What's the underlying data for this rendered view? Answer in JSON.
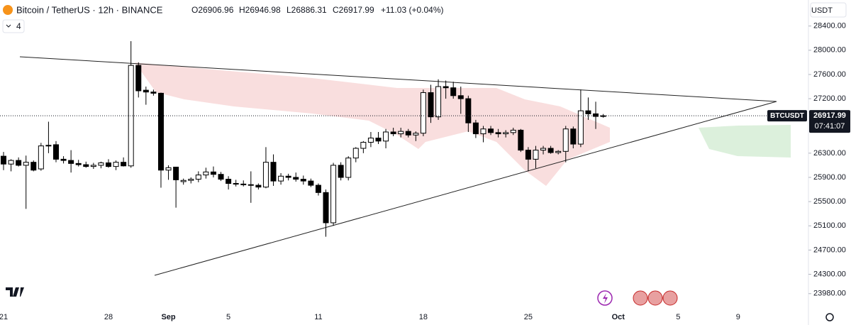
{
  "chart_data": {
    "type": "candlestick",
    "title": "Bitcoin / TetherUS · 12h · BINANCE",
    "legend_values": [
      "O26906.96",
      "H26946.98",
      "L26886.31",
      "C26917.99"
    ],
    "change": "+11.03 (+0.04%)",
    "indicators": 4,
    "currency": "USDT",
    "symbol_label": "BTCUSDT",
    "countdown": "07:41:07",
    "up_color": "#ffffff",
    "down_color": "#000000",
    "categories": [
      "21",
      null,
      null,
      null,
      null,
      null,
      null,
      null,
      null,
      null,
      null,
      null,
      null,
      null,
      "28",
      null,
      null,
      null,
      null,
      null,
      null,
      null,
      "Sep",
      null,
      null,
      null,
      null,
      null,
      null,
      null,
      "5",
      null,
      null,
      null,
      null,
      null,
      null,
      null,
      null,
      null,
      null,
      null,
      "11",
      null,
      null,
      null,
      null,
      null,
      null,
      null,
      null,
      null,
      null,
      null,
      null,
      null,
      "18",
      null,
      null,
      null,
      null,
      null,
      null,
      null,
      null,
      null,
      null,
      null,
      null,
      null,
      "25",
      null,
      null,
      null,
      null,
      null,
      null,
      null,
      null,
      null,
      null,
      null,
      "Oct",
      null,
      null,
      null,
      null,
      null,
      null,
      null,
      "5",
      null,
      null,
      null,
      null,
      null,
      null,
      null,
      "9",
      null,
      null,
      null,
      null,
      null,
      null,
      null,
      null,
      null
    ],
    "open": [
      26250,
      26120,
      26180,
      26100,
      26150,
      26040,
      26420,
      26440,
      26200,
      26180,
      26130,
      26110,
      26080,
      26100,
      26140,
      26080,
      26150,
      26090,
      27750,
      27340,
      27310,
      27290,
      26020,
      26070,
      25830,
      25850,
      25870,
      25940,
      25990,
      25950,
      25870,
      25800,
      25790,
      25780,
      25770,
      25740,
      26150,
      25840,
      25920,
      25900,
      25870,
      25840,
      25770,
      25650,
      25150,
      26100,
      25900,
      26220,
      26380,
      26480,
      26550,
      26500,
      26650,
      26620,
      26660,
      26600,
      26630,
      27300,
      26900,
      27400,
      27380,
      27250,
      27200,
      26800,
      26620,
      26700,
      26640,
      26620,
      26640,
      26680,
      26350,
      26200,
      26350,
      26380,
      26310,
      26330,
      26700,
      26450,
      27000,
      26950,
      26906.96,
      null,
      null,
      null,
      null,
      null,
      null,
      null,
      null,
      null,
      null,
      null,
      null,
      null,
      null,
      null,
      null,
      null,
      null,
      null,
      null,
      null,
      null,
      null,
      null,
      null,
      null,
      null
    ],
    "high": [
      26320,
      26200,
      26230,
      26260,
      26180,
      26470,
      26820,
      26500,
      26250,
      26350,
      26190,
      26160,
      26140,
      26160,
      26200,
      26180,
      26230,
      28150,
      27800,
      27400,
      27350,
      27300,
      26100,
      26070,
      25880,
      25900,
      26000,
      26060,
      26080,
      25990,
      25920,
      25860,
      25850,
      26000,
      25800,
      26400,
      26280,
      25970,
      25960,
      25980,
      25930,
      25880,
      25800,
      25700,
      26140,
      26150,
      26250,
      26400,
      26500,
      26650,
      26650,
      26700,
      26720,
      26720,
      26700,
      26660,
      27350,
      27430,
      27520,
      27500,
      27480,
      27400,
      27250,
      26850,
      26750,
      26750,
      26700,
      26680,
      26720,
      26700,
      26400,
      26420,
      26420,
      26420,
      26350,
      26750,
      26740,
      27350,
      27220,
      27150,
      26946.98,
      null,
      null,
      null,
      null,
      null,
      null,
      null,
      null,
      null,
      null,
      null,
      null,
      null,
      null,
      null,
      null,
      null,
      null,
      null,
      null,
      null,
      null,
      null,
      null,
      null,
      null,
      null
    ],
    "low": [
      26020,
      26000,
      26080,
      25380,
      26000,
      26010,
      26300,
      26150,
      26130,
      25980,
      26080,
      26060,
      26040,
      26050,
      26060,
      26020,
      26080,
      26060,
      27220,
      27100,
      27250,
      25730,
      25860,
      25400,
      25780,
      25800,
      25820,
      25880,
      25900,
      25840,
      25700,
      25750,
      25750,
      25480,
      25700,
      25720,
      25760,
      25780,
      25850,
      25830,
      25780,
      25740,
      25600,
      24920,
      25100,
      25850,
      25850,
      26150,
      26300,
      26400,
      26450,
      26380,
      26580,
      26560,
      26560,
      26500,
      26580,
      26800,
      26850,
      27200,
      27200,
      26950,
      26650,
      26550,
      26480,
      26600,
      26560,
      26560,
      26600,
      26320,
      26000,
      26050,
      26280,
      26290,
      26280,
      26150,
      26380,
      26400,
      26850,
      26700,
      26886.31,
      null,
      null,
      null,
      null,
      null,
      null,
      null,
      null,
      null,
      null,
      null,
      null,
      null,
      null,
      null,
      null,
      null,
      null,
      null,
      null,
      null,
      null,
      null,
      null,
      null,
      null,
      null
    ],
    "close": [
      26120,
      26180,
      26100,
      26150,
      26020,
      26420,
      26430,
      26200,
      26180,
      26130,
      26110,
      26080,
      26100,
      26140,
      26080,
      26150,
      26090,
      27750,
      27330,
      27310,
      27290,
      26020,
      26060,
      25860,
      25850,
      25870,
      25940,
      25990,
      25950,
      25870,
      25800,
      25790,
      25780,
      25770,
      25740,
      26150,
      25840,
      25920,
      25900,
      25870,
      25840,
      25770,
      25650,
      25150,
      26100,
      25900,
      26220,
      26380,
      26480,
      26550,
      26500,
      26650,
      26620,
      26660,
      26600,
      26630,
      27300,
      26900,
      27400,
      27380,
      27250,
      27200,
      26800,
      26620,
      26700,
      26640,
      26620,
      26640,
      26680,
      26350,
      26200,
      26350,
      26380,
      26310,
      26330,
      26700,
      26450,
      27000,
      26950,
      26906.96,
      26917.99,
      null,
      null,
      null,
      null,
      null,
      null,
      null,
      null,
      null,
      null,
      null,
      null,
      null,
      null,
      null,
      null,
      null,
      null,
      null,
      null,
      null,
      null,
      null,
      null,
      null,
      null,
      null
    ],
    "ylim": [
      23790,
      28830
    ],
    "yticks": [
      {
        "value": 28400,
        "label": "28400.00"
      },
      {
        "value": 28000,
        "label": "28000.00"
      },
      {
        "value": 27600,
        "label": "27600.00"
      },
      {
        "value": 27200,
        "label": "27200.00"
      },
      {
        "value": 26300,
        "label": "26300.00"
      },
      {
        "value": 25900,
        "label": "25900.00"
      },
      {
        "value": 25500,
        "label": "25500.00"
      },
      {
        "value": 25100,
        "label": "25100.00"
      },
      {
        "value": 24700,
        "label": "24700.00"
      },
      {
        "value": 24300,
        "label": "24300.00"
      },
      {
        "value": 23980,
        "label": "23980.00"
      }
    ]
  }
}
